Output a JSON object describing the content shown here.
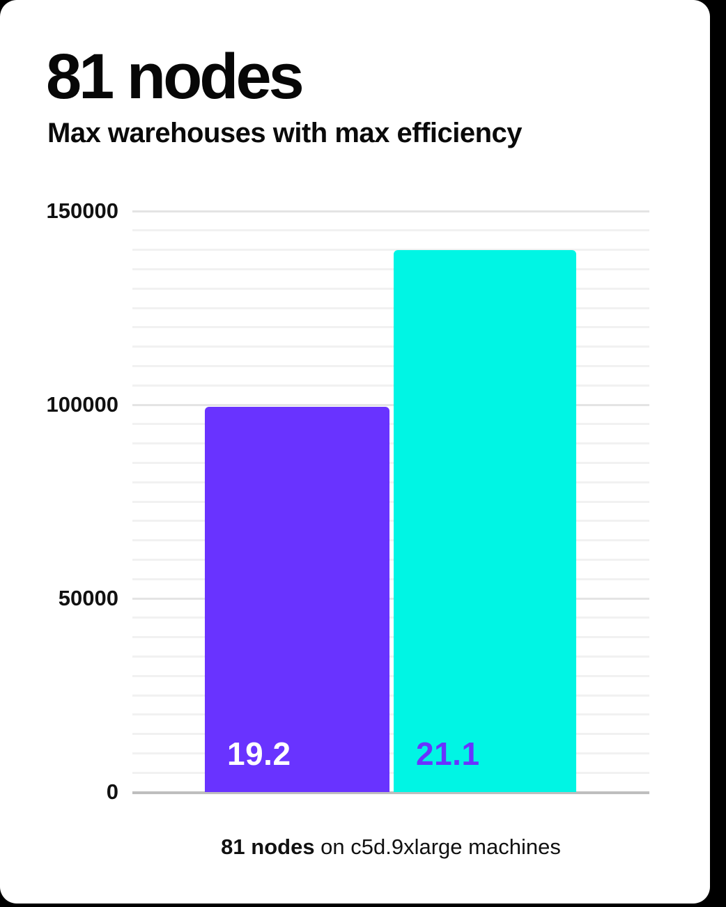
{
  "header": {
    "title": "81 nodes",
    "subtitle": "Max warehouses with max efficiency"
  },
  "chart_data": {
    "type": "bar",
    "title": "81 nodes",
    "subtitle": "Max warehouses with max efficiency",
    "categories": [
      "19.2",
      "21.1"
    ],
    "values": [
      99500,
      140000
    ],
    "bar_labels": [
      "19.2",
      "21.1"
    ],
    "bar_colors": [
      "#6933FF",
      "#00F5E4"
    ],
    "bar_label_colors": [
      "#FFFFFF",
      "#6933FF"
    ],
    "xlabel": "",
    "ylabel": "",
    "ylim": [
      0,
      150000
    ],
    "yticks": [
      0,
      50000,
      100000,
      150000
    ],
    "ytick_labels": [
      "0",
      "50000",
      "100000",
      "150000"
    ],
    "gridline_step": 5000,
    "grid": "horizontal",
    "legend": "none",
    "caption": "81 nodes on c5d.9xlarge machines"
  },
  "caption": {
    "bold": "81 nodes",
    "rest": " on c5d.9xlarge machines"
  },
  "colors": {
    "background": "#000000",
    "card": "#FFFFFF",
    "accent_purple": "#6933FF",
    "accent_cyan": "#00F5E4",
    "major_gridline": "#E4E4E4",
    "minor_gridline": "#F1F1F1",
    "axis_line": "#BEBEBE",
    "text": "#111111"
  }
}
